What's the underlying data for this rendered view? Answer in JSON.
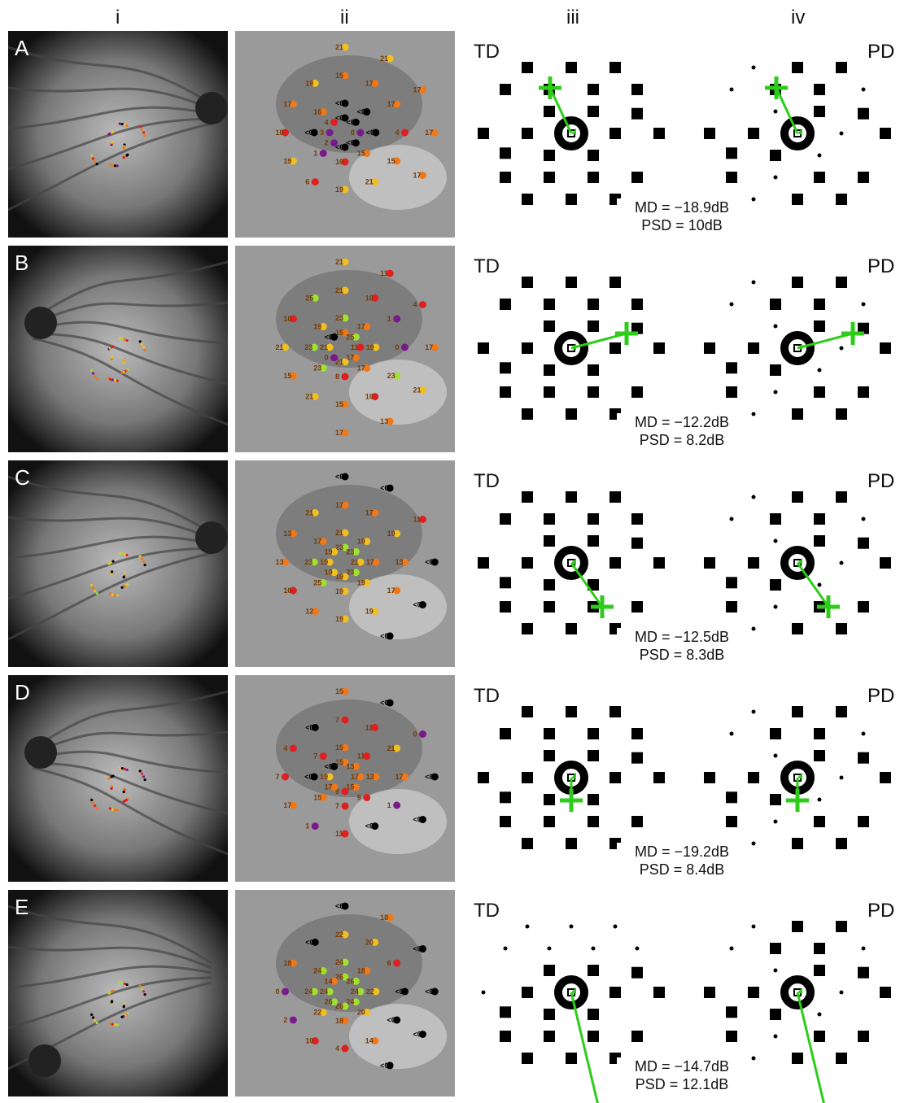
{
  "columns": [
    "i",
    "ii",
    "iii",
    "iv"
  ],
  "td_label": "TD",
  "pd_label": "PD",
  "colors": {
    "arrow": "#2ecc1a",
    "threshold_scale": {
      "lt0": "#000000",
      "0-3": "#7a1a8a",
      "4-11": "#e02020",
      "12-18": "#f07818",
      "19-22": "#f0c020",
      "23-26": "#a0e030"
    }
  },
  "rows": [
    {
      "label": "A",
      "md": "MD = −18.9dB",
      "psd": "PSD = 10dB",
      "points": [
        {
          "v": "<0"
        },
        {
          "v": "<0"
        },
        {
          "v": "0"
        },
        {
          "v": "<0"
        },
        {
          "v": "<0"
        },
        {
          "v": "2"
        },
        {
          "v": "3"
        },
        {
          "v": "4"
        },
        {
          "v": "<0"
        },
        {
          "v": "<0"
        },
        {
          "v": "<0"
        },
        {
          "v": "15"
        },
        {
          "v": "10"
        },
        {
          "v": "1"
        },
        {
          "v": "<0"
        },
        {
          "v": "16"
        },
        {
          "v": "15"
        },
        {
          "v": "17"
        },
        {
          "v": "17"
        },
        {
          "v": "4"
        },
        {
          "v": "15"
        },
        {
          "v": "21"
        },
        {
          "v": "19"
        },
        {
          "v": "6"
        },
        {
          "v": "19"
        },
        {
          "v": "10"
        },
        {
          "v": "17"
        },
        {
          "v": "19"
        },
        {
          "v": "21"
        },
        {
          "v": "21"
        },
        {
          "v": "17"
        },
        {
          "v": "17"
        },
        {
          "v": "17"
        }
      ]
    },
    {
      "label": "B",
      "md": "MD = −12.2dB",
      "psd": "PSD = 8.2dB",
      "points": [
        {
          "v": "15"
        },
        {
          "v": "25"
        },
        {
          "v": "11"
        },
        {
          "v": "17"
        },
        {
          "v": "21"
        },
        {
          "v": "0"
        },
        {
          "v": "21"
        },
        {
          "v": "<0"
        },
        {
          "v": "23"
        },
        {
          "v": "17"
        },
        {
          "v": "19"
        },
        {
          "v": "17"
        },
        {
          "v": "8"
        },
        {
          "v": "23"
        },
        {
          "v": "23"
        },
        {
          "v": "19"
        },
        {
          "v": "21"
        },
        {
          "v": "10"
        },
        {
          "v": "1"
        },
        {
          "v": "0"
        },
        {
          "v": "23"
        },
        {
          "v": "10"
        },
        {
          "v": "15"
        },
        {
          "v": "21"
        },
        {
          "v": "15"
        },
        {
          "v": "21"
        },
        {
          "v": "10"
        },
        {
          "v": "25"
        },
        {
          "v": "21"
        },
        {
          "v": "11"
        },
        {
          "v": "4"
        },
        {
          "v": "17"
        },
        {
          "v": "21"
        },
        {
          "v": "13"
        },
        {
          "v": "17"
        }
      ]
    },
    {
      "label": "C",
      "md": "MD = −12.5dB",
      "psd": "PSD = 8.3dB",
      "points": [
        {
          "v": "23"
        },
        {
          "v": "23"
        },
        {
          "v": "21"
        },
        {
          "v": "23"
        },
        {
          "v": "19"
        },
        {
          "v": "19"
        },
        {
          "v": "19"
        },
        {
          "v": "19"
        },
        {
          "v": "21"
        },
        {
          "v": "19"
        },
        {
          "v": "17"
        },
        {
          "v": "19"
        },
        {
          "v": "19"
        },
        {
          "v": "25"
        },
        {
          "v": "23"
        },
        {
          "v": "17"
        },
        {
          "v": "17"
        },
        {
          "v": "17"
        },
        {
          "v": "19"
        },
        {
          "v": "13"
        },
        {
          "v": "17"
        },
        {
          "v": "19"
        },
        {
          "v": "19"
        },
        {
          "v": "12"
        },
        {
          "v": "10"
        },
        {
          "v": "13"
        },
        {
          "v": "13"
        },
        {
          "v": "21"
        },
        {
          "v": "<0"
        },
        {
          "v": "<0"
        },
        {
          "v": "11"
        },
        {
          "v": "<0"
        },
        {
          "v": "<0"
        },
        {
          "v": "<0"
        }
      ]
    },
    {
      "label": "D",
      "md": "MD = −19.2dB",
      "psd": "PSD = 8.4dB",
      "points": [
        {
          "v": "15"
        },
        {
          "v": "13"
        },
        {
          "v": "17"
        },
        {
          "v": "15"
        },
        {
          "v": "9"
        },
        {
          "v": "17"
        },
        {
          "v": "19"
        },
        {
          "v": "<0"
        },
        {
          "v": "15"
        },
        {
          "v": "11"
        },
        {
          "v": "13"
        },
        {
          "v": "9"
        },
        {
          "v": "7"
        },
        {
          "v": "15"
        },
        {
          "v": "<0"
        },
        {
          "v": "7"
        },
        {
          "v": "7"
        },
        {
          "v": "11"
        },
        {
          "v": "21"
        },
        {
          "v": "17"
        },
        {
          "v": "1"
        },
        {
          "v": "<0"
        },
        {
          "v": "11"
        },
        {
          "v": "1"
        },
        {
          "v": "17"
        },
        {
          "v": "7"
        },
        {
          "v": "4"
        },
        {
          "v": "<0"
        },
        {
          "v": "15"
        },
        {
          "v": "<0"
        },
        {
          "v": "0"
        },
        {
          "v": "<0"
        },
        {
          "v": "<0"
        }
      ]
    },
    {
      "label": "E",
      "md": "MD = −14.7dB",
      "psd": "PSD = 12.1dB",
      "points": [
        {
          "v": "26"
        },
        {
          "v": "26"
        },
        {
          "v": "24"
        },
        {
          "v": "24"
        },
        {
          "v": "26"
        },
        {
          "v": "26"
        },
        {
          "v": "24"
        },
        {
          "v": "14"
        },
        {
          "v": "24"
        },
        {
          "v": "18"
        },
        {
          "v": "22"
        },
        {
          "v": "20"
        },
        {
          "v": "18"
        },
        {
          "v": "22"
        },
        {
          "v": "24"
        },
        {
          "v": "24"
        },
        {
          "v": "22"
        },
        {
          "v": "20"
        },
        {
          "v": "6"
        },
        {
          "v": "<0"
        },
        {
          "v": "<0"
        },
        {
          "v": "14"
        },
        {
          "v": "4"
        },
        {
          "v": "10"
        },
        {
          "v": "2"
        },
        {
          "v": "0"
        },
        {
          "v": "18"
        },
        {
          "v": "<0"
        },
        {
          "v": "<0"
        },
        {
          "v": "18"
        },
        {
          "v": "<0"
        },
        {
          "v": "<0"
        },
        {
          "v": "<0"
        },
        {
          "v": "<0"
        }
      ]
    }
  ]
}
